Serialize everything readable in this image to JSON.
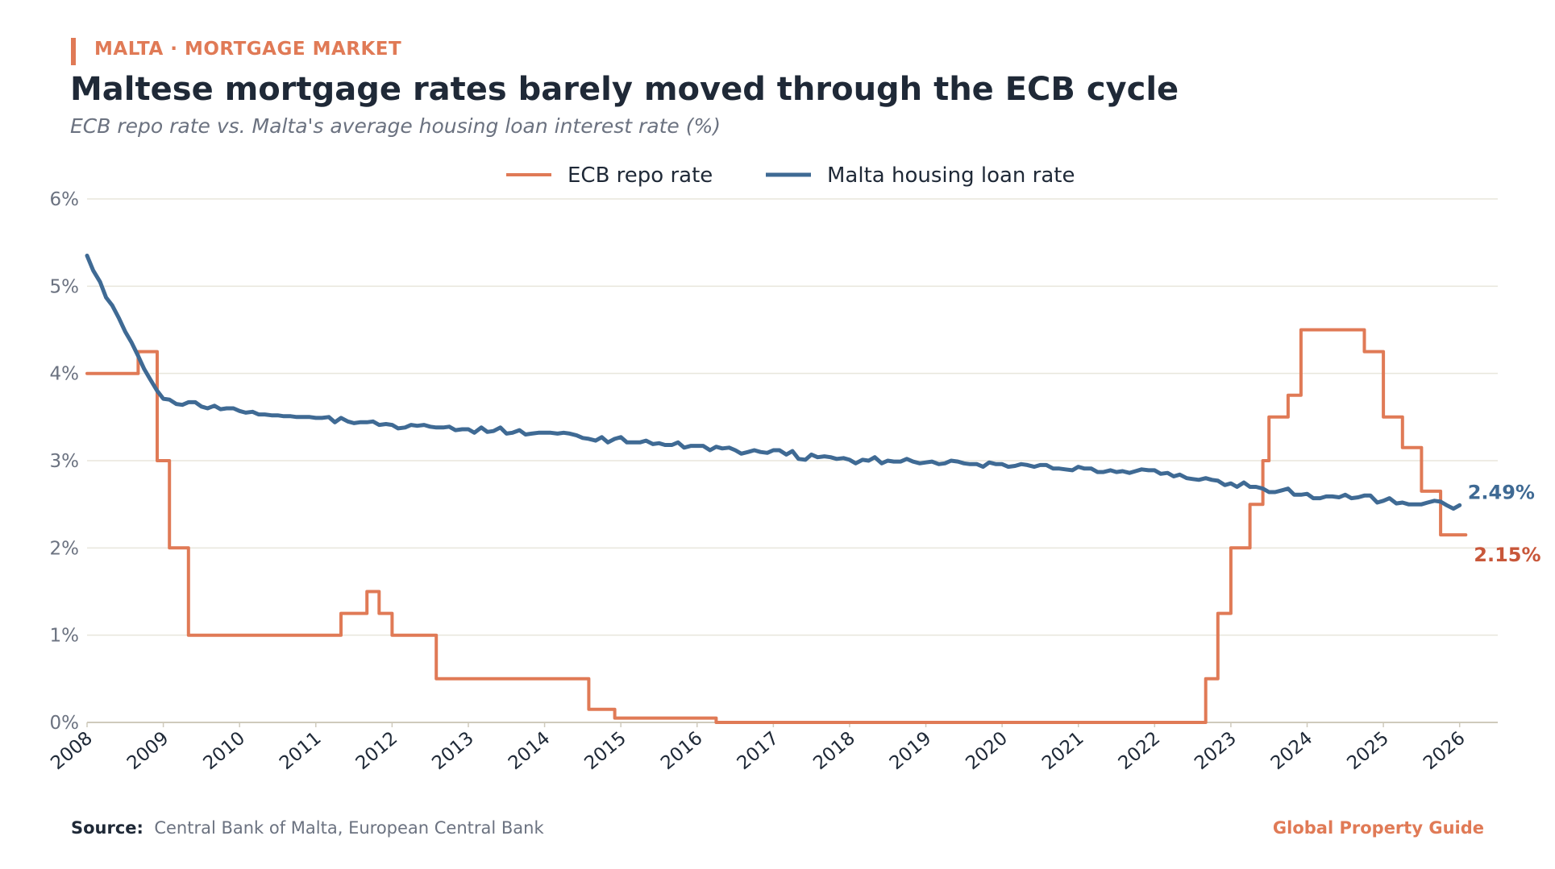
{
  "header": {
    "kicker": "MALTA · MORTGAGE MARKET",
    "title": "Maltese mortgage rates barely moved through the ECB cycle",
    "subtitle": "ECB repo rate vs. Malta's average housing loan interest rate (%)"
  },
  "footer": {
    "source_label": "Source:",
    "source_text": "Central Bank of Malta, European Central Bank",
    "brand": "Global Property Guide"
  },
  "colors": {
    "ecb": "#e07a56",
    "malta": "#3f6a94",
    "ecb_label": "#c8573a",
    "grid": "#e8e6dc",
    "axis": "#cfcabc",
    "tick": "#6b7280",
    "text": "#1f2937"
  },
  "chart_data": {
    "type": "line",
    "title": "Maltese mortgage rates barely moved through the ECB cycle",
    "subtitle": "ECB repo rate vs. Malta's average housing loan interest rate (%)",
    "xlabel": "",
    "ylabel": "",
    "xlim": [
      2008,
      2026.5
    ],
    "ylim": [
      0,
      6
    ],
    "x_ticks": [
      2008,
      2009,
      2010,
      2011,
      2012,
      2013,
      2014,
      2015,
      2016,
      2017,
      2018,
      2019,
      2020,
      2021,
      2022,
      2023,
      2024,
      2025,
      2026
    ],
    "x_tick_labels": [
      "2008",
      "2009",
      "2010",
      "2011",
      "2012",
      "2013",
      "2014",
      "2015",
      "2016",
      "2017",
      "2018",
      "2019",
      "2020",
      "2021",
      "2022",
      "2023",
      "2024",
      "2025",
      "2026"
    ],
    "y_ticks": [
      0,
      1,
      2,
      3,
      4,
      5,
      6
    ],
    "y_tick_labels": [
      "0%",
      "1%",
      "2%",
      "3%",
      "4%",
      "5%",
      "6%"
    ],
    "grid": true,
    "legend": "top-center",
    "series": [
      {
        "name": "ECB repo rate",
        "key": "ecb",
        "step": true,
        "end_label": "2.15%",
        "points": [
          [
            2008.0,
            4.0
          ],
          [
            2008.67,
            4.25
          ],
          [
            2008.92,
            3.0
          ],
          [
            2009.08,
            2.0
          ],
          [
            2009.33,
            1.0
          ],
          [
            2011.33,
            1.25
          ],
          [
            2011.67,
            1.5
          ],
          [
            2011.83,
            1.25
          ],
          [
            2012.0,
            1.0
          ],
          [
            2012.58,
            0.5
          ],
          [
            2014.58,
            0.15
          ],
          [
            2014.92,
            0.05
          ],
          [
            2016.25,
            0.0
          ],
          [
            2022.67,
            0.5
          ],
          [
            2022.83,
            1.25
          ],
          [
            2023.0,
            2.0
          ],
          [
            2023.25,
            2.5
          ],
          [
            2023.42,
            3.0
          ],
          [
            2023.5,
            3.5
          ],
          [
            2023.75,
            3.75
          ],
          [
            2023.92,
            4.5
          ],
          [
            2024.75,
            4.25
          ],
          [
            2025.0,
            3.5
          ],
          [
            2025.25,
            3.15
          ],
          [
            2025.5,
            2.65
          ],
          [
            2025.75,
            2.15
          ],
          [
            2026.08,
            2.15
          ]
        ]
      },
      {
        "name": "Malta housing loan rate",
        "key": "malta",
        "step": false,
        "end_label": "2.49%",
        "points": [
          [
            2008.0,
            5.35
          ],
          [
            2008.08,
            5.18
          ],
          [
            2008.17,
            5.05
          ],
          [
            2008.25,
            4.87
          ],
          [
            2008.33,
            4.78
          ],
          [
            2008.42,
            4.63
          ],
          [
            2008.5,
            4.48
          ],
          [
            2008.58,
            4.36
          ],
          [
            2008.67,
            4.2
          ],
          [
            2008.75,
            4.05
          ],
          [
            2008.83,
            3.93
          ],
          [
            2008.92,
            3.8
          ],
          [
            2009.0,
            3.71
          ],
          [
            2009.08,
            3.7
          ],
          [
            2009.17,
            3.65
          ],
          [
            2009.25,
            3.64
          ],
          [
            2009.33,
            3.67
          ],
          [
            2009.42,
            3.67
          ],
          [
            2009.5,
            3.62
          ],
          [
            2009.58,
            3.6
          ],
          [
            2009.67,
            3.63
          ],
          [
            2009.75,
            3.59
          ],
          [
            2009.83,
            3.6
          ],
          [
            2009.92,
            3.6
          ],
          [
            2010.0,
            3.57
          ],
          [
            2010.08,
            3.55
          ],
          [
            2010.17,
            3.56
          ],
          [
            2010.25,
            3.53
          ],
          [
            2010.33,
            3.53
          ],
          [
            2010.42,
            3.52
          ],
          [
            2010.5,
            3.52
          ],
          [
            2010.58,
            3.51
          ],
          [
            2010.67,
            3.51
          ],
          [
            2010.75,
            3.5
          ],
          [
            2010.83,
            3.5
          ],
          [
            2010.92,
            3.5
          ],
          [
            2011.0,
            3.49
          ],
          [
            2011.08,
            3.49
          ],
          [
            2011.17,
            3.5
          ],
          [
            2011.25,
            3.44
          ],
          [
            2011.33,
            3.49
          ],
          [
            2011.42,
            3.45
          ],
          [
            2011.5,
            3.43
          ],
          [
            2011.58,
            3.44
          ],
          [
            2011.67,
            3.44
          ],
          [
            2011.75,
            3.45
          ],
          [
            2011.83,
            3.41
          ],
          [
            2011.92,
            3.42
          ],
          [
            2012.0,
            3.41
          ],
          [
            2012.08,
            3.37
          ],
          [
            2012.17,
            3.38
          ],
          [
            2012.25,
            3.41
          ],
          [
            2012.33,
            3.4
          ],
          [
            2012.42,
            3.41
          ],
          [
            2012.5,
            3.39
          ],
          [
            2012.58,
            3.38
          ],
          [
            2012.67,
            3.38
          ],
          [
            2012.75,
            3.39
          ],
          [
            2012.83,
            3.35
          ],
          [
            2012.92,
            3.36
          ],
          [
            2013.0,
            3.36
          ],
          [
            2013.08,
            3.32
          ],
          [
            2013.17,
            3.38
          ],
          [
            2013.25,
            3.33
          ],
          [
            2013.33,
            3.34
          ],
          [
            2013.42,
            3.38
          ],
          [
            2013.5,
            3.31
          ],
          [
            2013.58,
            3.32
          ],
          [
            2013.67,
            3.35
          ],
          [
            2013.75,
            3.3
          ],
          [
            2013.83,
            3.31
          ],
          [
            2013.92,
            3.32
          ],
          [
            2014.0,
            3.32
          ],
          [
            2014.08,
            3.32
          ],
          [
            2014.17,
            3.31
          ],
          [
            2014.25,
            3.32
          ],
          [
            2014.33,
            3.31
          ],
          [
            2014.42,
            3.29
          ],
          [
            2014.5,
            3.26
          ],
          [
            2014.58,
            3.25
          ],
          [
            2014.67,
            3.23
          ],
          [
            2014.75,
            3.27
          ],
          [
            2014.83,
            3.21
          ],
          [
            2014.92,
            3.25
          ],
          [
            2015.0,
            3.27
          ],
          [
            2015.08,
            3.21
          ],
          [
            2015.17,
            3.21
          ],
          [
            2015.25,
            3.21
          ],
          [
            2015.33,
            3.23
          ],
          [
            2015.42,
            3.19
          ],
          [
            2015.5,
            3.2
          ],
          [
            2015.58,
            3.18
          ],
          [
            2015.67,
            3.18
          ],
          [
            2015.75,
            3.21
          ],
          [
            2015.83,
            3.15
          ],
          [
            2015.92,
            3.17
          ],
          [
            2016.0,
            3.17
          ],
          [
            2016.08,
            3.17
          ],
          [
            2016.17,
            3.12
          ],
          [
            2016.25,
            3.16
          ],
          [
            2016.33,
            3.14
          ],
          [
            2016.42,
            3.15
          ],
          [
            2016.5,
            3.12
          ],
          [
            2016.58,
            3.08
          ],
          [
            2016.67,
            3.1
          ],
          [
            2016.75,
            3.12
          ],
          [
            2016.83,
            3.1
          ],
          [
            2016.92,
            3.09
          ],
          [
            2017.0,
            3.12
          ],
          [
            2017.08,
            3.12
          ],
          [
            2017.17,
            3.07
          ],
          [
            2017.25,
            3.11
          ],
          [
            2017.33,
            3.02
          ],
          [
            2017.42,
            3.01
          ],
          [
            2017.5,
            3.07
          ],
          [
            2017.58,
            3.04
          ],
          [
            2017.67,
            3.05
          ],
          [
            2017.75,
            3.04
          ],
          [
            2017.83,
            3.02
          ],
          [
            2017.92,
            3.03
          ],
          [
            2018.0,
            3.01
          ],
          [
            2018.08,
            2.97
          ],
          [
            2018.17,
            3.01
          ],
          [
            2018.25,
            3.0
          ],
          [
            2018.33,
            3.04
          ],
          [
            2018.42,
            2.97
          ],
          [
            2018.5,
            3.0
          ],
          [
            2018.58,
            2.99
          ],
          [
            2018.67,
            2.99
          ],
          [
            2018.75,
            3.02
          ],
          [
            2018.83,
            2.99
          ],
          [
            2018.92,
            2.97
          ],
          [
            2019.0,
            2.98
          ],
          [
            2019.08,
            2.99
          ],
          [
            2019.17,
            2.96
          ],
          [
            2019.25,
            2.97
          ],
          [
            2019.33,
            3.0
          ],
          [
            2019.42,
            2.99
          ],
          [
            2019.5,
            2.97
          ],
          [
            2019.58,
            2.96
          ],
          [
            2019.67,
            2.96
          ],
          [
            2019.75,
            2.93
          ],
          [
            2019.83,
            2.98
          ],
          [
            2019.92,
            2.96
          ],
          [
            2020.0,
            2.96
          ],
          [
            2020.08,
            2.93
          ],
          [
            2020.17,
            2.94
          ],
          [
            2020.25,
            2.96
          ],
          [
            2020.33,
            2.95
          ],
          [
            2020.42,
            2.93
          ],
          [
            2020.5,
            2.95
          ],
          [
            2020.58,
            2.95
          ],
          [
            2020.67,
            2.91
          ],
          [
            2020.75,
            2.91
          ],
          [
            2020.83,
            2.9
          ],
          [
            2020.92,
            2.89
          ],
          [
            2021.0,
            2.93
          ],
          [
            2021.08,
            2.91
          ],
          [
            2021.17,
            2.91
          ],
          [
            2021.25,
            2.87
          ],
          [
            2021.33,
            2.87
          ],
          [
            2021.42,
            2.89
          ],
          [
            2021.5,
            2.87
          ],
          [
            2021.58,
            2.88
          ],
          [
            2021.67,
            2.86
          ],
          [
            2021.75,
            2.88
          ],
          [
            2021.83,
            2.9
          ],
          [
            2021.92,
            2.89
          ],
          [
            2022.0,
            2.89
          ],
          [
            2022.08,
            2.85
          ],
          [
            2022.17,
            2.86
          ],
          [
            2022.25,
            2.82
          ],
          [
            2022.33,
            2.84
          ],
          [
            2022.42,
            2.8
          ],
          [
            2022.5,
            2.79
          ],
          [
            2022.58,
            2.78
          ],
          [
            2022.67,
            2.8
          ],
          [
            2022.75,
            2.78
          ],
          [
            2022.83,
            2.77
          ],
          [
            2022.92,
            2.72
          ],
          [
            2023.0,
            2.74
          ],
          [
            2023.08,
            2.7
          ],
          [
            2023.17,
            2.75
          ],
          [
            2023.25,
            2.7
          ],
          [
            2023.33,
            2.7
          ],
          [
            2023.42,
            2.68
          ],
          [
            2023.5,
            2.64
          ],
          [
            2023.58,
            2.64
          ],
          [
            2023.67,
            2.66
          ],
          [
            2023.75,
            2.68
          ],
          [
            2023.83,
            2.61
          ],
          [
            2023.92,
            2.61
          ],
          [
            2024.0,
            2.62
          ],
          [
            2024.08,
            2.57
          ],
          [
            2024.17,
            2.57
          ],
          [
            2024.25,
            2.59
          ],
          [
            2024.33,
            2.59
          ],
          [
            2024.42,
            2.58
          ],
          [
            2024.5,
            2.61
          ],
          [
            2024.58,
            2.57
          ],
          [
            2024.67,
            2.58
          ],
          [
            2024.75,
            2.6
          ],
          [
            2024.83,
            2.6
          ],
          [
            2024.92,
            2.52
          ],
          [
            2025.0,
            2.54
          ],
          [
            2025.08,
            2.57
          ],
          [
            2025.17,
            2.51
          ],
          [
            2025.25,
            2.52
          ],
          [
            2025.33,
            2.5
          ],
          [
            2025.42,
            2.5
          ],
          [
            2025.5,
            2.5
          ],
          [
            2025.58,
            2.52
          ],
          [
            2025.67,
            2.54
          ],
          [
            2025.75,
            2.53
          ],
          [
            2025.83,
            2.49
          ],
          [
            2025.92,
            2.45
          ],
          [
            2026.0,
            2.49
          ]
        ]
      }
    ]
  }
}
